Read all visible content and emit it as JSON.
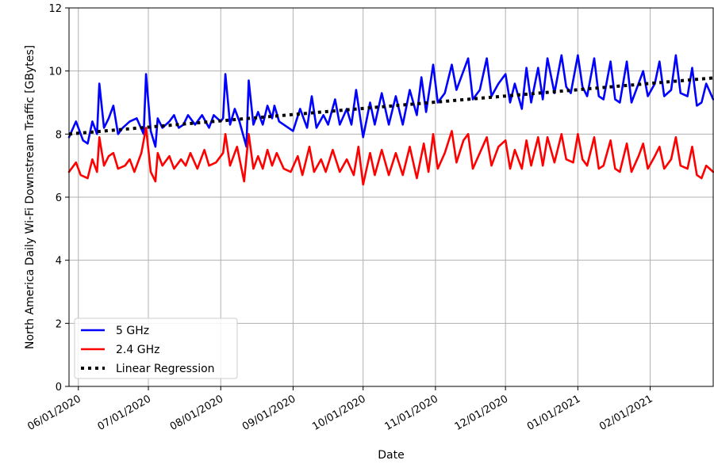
{
  "chart_data": {
    "type": "line",
    "title": "",
    "xlabel": "Date",
    "ylabel": "North America Daily Wi-Fi Downstream Traffic [GBytes]",
    "x_range": [
      "2020-05-28",
      "2021-02-28"
    ],
    "ylim": [
      0,
      12
    ],
    "yticks": [
      0,
      2,
      4,
      6,
      8,
      10,
      12
    ],
    "xticks": [
      {
        "date": "2020-06-01",
        "label": "06/01/2020"
      },
      {
        "date": "2020-07-01",
        "label": "07/01/2020"
      },
      {
        "date": "2020-08-01",
        "label": "08/01/2020"
      },
      {
        "date": "2020-09-01",
        "label": "09/01/2020"
      },
      {
        "date": "2020-10-01",
        "label": "10/01/2020"
      },
      {
        "date": "2020-11-01",
        "label": "11/01/2020"
      },
      {
        "date": "2020-12-01",
        "label": "12/01/2020"
      },
      {
        "date": "2021-01-01",
        "label": "01/01/2021"
      },
      {
        "date": "2021-02-01",
        "label": "02/01/2021"
      }
    ],
    "grid": true,
    "legend_position": "lower-left",
    "series": [
      {
        "name": "5 GHz",
        "color": "#0000ff",
        "style": "solid",
        "points": [
          [
            "2020-05-28",
            7.9
          ],
          [
            "2020-05-31",
            8.4
          ],
          [
            "2020-06-03",
            7.8
          ],
          [
            "2020-06-05",
            7.7
          ],
          [
            "2020-06-07",
            8.4
          ],
          [
            "2020-06-09",
            8.0
          ],
          [
            "2020-06-10",
            9.6
          ],
          [
            "2020-06-12",
            8.2
          ],
          [
            "2020-06-14",
            8.5
          ],
          [
            "2020-06-16",
            8.9
          ],
          [
            "2020-06-18",
            8.0
          ],
          [
            "2020-06-20",
            8.2
          ],
          [
            "2020-06-23",
            8.4
          ],
          [
            "2020-06-26",
            8.5
          ],
          [
            "2020-06-29",
            8.0
          ],
          [
            "2020-06-30",
            9.9
          ],
          [
            "2020-07-02",
            8.1
          ],
          [
            "2020-07-04",
            7.6
          ],
          [
            "2020-07-05",
            8.5
          ],
          [
            "2020-07-07",
            8.2
          ],
          [
            "2020-07-10",
            8.4
          ],
          [
            "2020-07-12",
            8.6
          ],
          [
            "2020-07-14",
            8.2
          ],
          [
            "2020-07-16",
            8.3
          ],
          [
            "2020-07-18",
            8.6
          ],
          [
            "2020-07-21",
            8.3
          ],
          [
            "2020-07-24",
            8.6
          ],
          [
            "2020-07-27",
            8.2
          ],
          [
            "2020-07-29",
            8.6
          ],
          [
            "2020-08-01",
            8.4
          ],
          [
            "2020-08-02",
            8.5
          ],
          [
            "2020-08-03",
            9.9
          ],
          [
            "2020-08-05",
            8.3
          ],
          [
            "2020-08-07",
            8.8
          ],
          [
            "2020-08-09",
            8.4
          ],
          [
            "2020-08-12",
            7.6
          ],
          [
            "2020-08-13",
            9.7
          ],
          [
            "2020-08-15",
            8.3
          ],
          [
            "2020-08-17",
            8.7
          ],
          [
            "2020-08-19",
            8.3
          ],
          [
            "2020-08-21",
            8.9
          ],
          [
            "2020-08-23",
            8.5
          ],
          [
            "2020-08-24",
            8.9
          ],
          [
            "2020-08-26",
            8.4
          ],
          [
            "2020-08-28",
            8.3
          ],
          [
            "2020-09-01",
            8.1
          ],
          [
            "2020-09-04",
            8.8
          ],
          [
            "2020-09-07",
            8.2
          ],
          [
            "2020-09-09",
            9.2
          ],
          [
            "2020-09-11",
            8.2
          ],
          [
            "2020-09-14",
            8.6
          ],
          [
            "2020-09-16",
            8.3
          ],
          [
            "2020-09-19",
            9.1
          ],
          [
            "2020-09-21",
            8.3
          ],
          [
            "2020-09-24",
            8.8
          ],
          [
            "2020-09-26",
            8.3
          ],
          [
            "2020-09-28",
            9.4
          ],
          [
            "2020-10-01",
            7.9
          ],
          [
            "2020-10-04",
            9.0
          ],
          [
            "2020-10-06",
            8.3
          ],
          [
            "2020-10-09",
            9.3
          ],
          [
            "2020-10-12",
            8.3
          ],
          [
            "2020-10-15",
            9.2
          ],
          [
            "2020-10-18",
            8.3
          ],
          [
            "2020-10-21",
            9.4
          ],
          [
            "2020-10-24",
            8.6
          ],
          [
            "2020-10-26",
            9.8
          ],
          [
            "2020-10-28",
            8.7
          ],
          [
            "2020-10-31",
            10.2
          ],
          [
            "2020-11-02",
            9.0
          ],
          [
            "2020-11-05",
            9.3
          ],
          [
            "2020-11-08",
            10.2
          ],
          [
            "2020-11-10",
            9.4
          ],
          [
            "2020-11-13",
            10.0
          ],
          [
            "2020-11-15",
            10.4
          ],
          [
            "2020-11-17",
            9.1
          ],
          [
            "2020-11-20",
            9.4
          ],
          [
            "2020-11-23",
            10.4
          ],
          [
            "2020-11-25",
            9.2
          ],
          [
            "2020-11-28",
            9.6
          ],
          [
            "2020-12-01",
            9.9
          ],
          [
            "2020-12-03",
            9.0
          ],
          [
            "2020-12-05",
            9.6
          ],
          [
            "2020-12-08",
            8.8
          ],
          [
            "2020-12-10",
            10.1
          ],
          [
            "2020-12-12",
            9.0
          ],
          [
            "2020-12-15",
            10.1
          ],
          [
            "2020-12-17",
            9.1
          ],
          [
            "2020-12-19",
            10.4
          ],
          [
            "2020-12-22",
            9.3
          ],
          [
            "2020-12-25",
            10.5
          ],
          [
            "2020-12-27",
            9.5
          ],
          [
            "2020-12-29",
            9.3
          ],
          [
            "2021-01-01",
            10.5
          ],
          [
            "2021-01-03",
            9.5
          ],
          [
            "2021-01-05",
            9.2
          ],
          [
            "2021-01-08",
            10.4
          ],
          [
            "2021-01-10",
            9.2
          ],
          [
            "2021-01-12",
            9.1
          ],
          [
            "2021-01-15",
            10.3
          ],
          [
            "2021-01-17",
            9.1
          ],
          [
            "2021-01-19",
            9.0
          ],
          [
            "2021-01-22",
            10.3
          ],
          [
            "2021-01-24",
            9.0
          ],
          [
            "2021-01-27",
            9.6
          ],
          [
            "2021-01-29",
            10.0
          ],
          [
            "2021-01-31",
            9.2
          ],
          [
            "2021-02-03",
            9.6
          ],
          [
            "2021-02-05",
            10.3
          ],
          [
            "2021-02-07",
            9.2
          ],
          [
            "2021-02-10",
            9.4
          ],
          [
            "2021-02-12",
            10.5
          ],
          [
            "2021-02-14",
            9.3
          ],
          [
            "2021-02-17",
            9.2
          ],
          [
            "2021-02-19",
            10.1
          ],
          [
            "2021-02-21",
            8.9
          ],
          [
            "2021-02-23",
            9.0
          ],
          [
            "2021-02-25",
            9.6
          ],
          [
            "2021-02-28",
            9.1
          ]
        ]
      },
      {
        "name": "2.4 GHz",
        "color": "#ff0000",
        "style": "solid",
        "points": [
          [
            "2020-05-28",
            6.8
          ],
          [
            "2020-05-31",
            7.1
          ],
          [
            "2020-06-02",
            6.7
          ],
          [
            "2020-06-05",
            6.6
          ],
          [
            "2020-06-07",
            7.2
          ],
          [
            "2020-06-09",
            6.8
          ],
          [
            "2020-06-10",
            7.9
          ],
          [
            "2020-06-12",
            7.0
          ],
          [
            "2020-06-14",
            7.3
          ],
          [
            "2020-06-16",
            7.4
          ],
          [
            "2020-06-18",
            6.9
          ],
          [
            "2020-06-21",
            7.0
          ],
          [
            "2020-06-23",
            7.2
          ],
          [
            "2020-06-25",
            6.8
          ],
          [
            "2020-06-28",
            7.4
          ],
          [
            "2020-06-30",
            8.2
          ],
          [
            "2020-07-02",
            6.8
          ],
          [
            "2020-07-04",
            6.5
          ],
          [
            "2020-07-05",
            7.4
          ],
          [
            "2020-07-07",
            7.0
          ],
          [
            "2020-07-10",
            7.3
          ],
          [
            "2020-07-12",
            6.9
          ],
          [
            "2020-07-15",
            7.2
          ],
          [
            "2020-07-17",
            7.0
          ],
          [
            "2020-07-19",
            7.4
          ],
          [
            "2020-07-22",
            6.9
          ],
          [
            "2020-07-25",
            7.5
          ],
          [
            "2020-07-27",
            7.0
          ],
          [
            "2020-07-30",
            7.1
          ],
          [
            "2020-08-02",
            7.4
          ],
          [
            "2020-08-03",
            8.0
          ],
          [
            "2020-08-05",
            7.0
          ],
          [
            "2020-08-08",
            7.6
          ],
          [
            "2020-08-11",
            6.5
          ],
          [
            "2020-08-13",
            8.0
          ],
          [
            "2020-08-15",
            6.9
          ],
          [
            "2020-08-17",
            7.3
          ],
          [
            "2020-08-19",
            6.9
          ],
          [
            "2020-08-21",
            7.5
          ],
          [
            "2020-08-23",
            7.0
          ],
          [
            "2020-08-25",
            7.4
          ],
          [
            "2020-08-28",
            6.9
          ],
          [
            "2020-08-31",
            6.8
          ],
          [
            "2020-09-03",
            7.3
          ],
          [
            "2020-09-05",
            6.7
          ],
          [
            "2020-09-08",
            7.6
          ],
          [
            "2020-09-10",
            6.8
          ],
          [
            "2020-09-13",
            7.2
          ],
          [
            "2020-09-15",
            6.8
          ],
          [
            "2020-09-18",
            7.5
          ],
          [
            "2020-09-21",
            6.8
          ],
          [
            "2020-09-24",
            7.2
          ],
          [
            "2020-09-27",
            6.7
          ],
          [
            "2020-09-29",
            7.6
          ],
          [
            "2020-10-01",
            6.4
          ],
          [
            "2020-10-04",
            7.4
          ],
          [
            "2020-10-06",
            6.7
          ],
          [
            "2020-10-09",
            7.5
          ],
          [
            "2020-10-12",
            6.7
          ],
          [
            "2020-10-15",
            7.4
          ],
          [
            "2020-10-18",
            6.7
          ],
          [
            "2020-10-21",
            7.6
          ],
          [
            "2020-10-24",
            6.6
          ],
          [
            "2020-10-27",
            7.7
          ],
          [
            "2020-10-29",
            6.8
          ],
          [
            "2020-10-31",
            8.0
          ],
          [
            "2020-11-02",
            6.9
          ],
          [
            "2020-11-05",
            7.4
          ],
          [
            "2020-11-08",
            8.1
          ],
          [
            "2020-11-10",
            7.1
          ],
          [
            "2020-11-13",
            7.8
          ],
          [
            "2020-11-15",
            8.0
          ],
          [
            "2020-11-17",
            6.9
          ],
          [
            "2020-11-20",
            7.4
          ],
          [
            "2020-11-23",
            7.9
          ],
          [
            "2020-11-25",
            7.0
          ],
          [
            "2020-11-28",
            7.6
          ],
          [
            "2020-12-01",
            7.8
          ],
          [
            "2020-12-03",
            6.9
          ],
          [
            "2020-12-05",
            7.5
          ],
          [
            "2020-12-08",
            6.9
          ],
          [
            "2020-12-10",
            7.8
          ],
          [
            "2020-12-12",
            7.0
          ],
          [
            "2020-12-15",
            7.9
          ],
          [
            "2020-12-17",
            7.0
          ],
          [
            "2020-12-19",
            7.9
          ],
          [
            "2020-12-22",
            7.1
          ],
          [
            "2020-12-25",
            8.0
          ],
          [
            "2020-12-27",
            7.2
          ],
          [
            "2020-12-30",
            7.1
          ],
          [
            "2021-01-01",
            8.0
          ],
          [
            "2021-01-03",
            7.2
          ],
          [
            "2021-01-05",
            7.0
          ],
          [
            "2021-01-08",
            7.9
          ],
          [
            "2021-01-10",
            6.9
          ],
          [
            "2021-01-12",
            7.0
          ],
          [
            "2021-01-15",
            7.8
          ],
          [
            "2021-01-17",
            6.9
          ],
          [
            "2021-01-19",
            6.8
          ],
          [
            "2021-01-22",
            7.7
          ],
          [
            "2021-01-24",
            6.8
          ],
          [
            "2021-01-27",
            7.3
          ],
          [
            "2021-01-29",
            7.7
          ],
          [
            "2021-01-31",
            6.9
          ],
          [
            "2021-02-03",
            7.3
          ],
          [
            "2021-02-05",
            7.6
          ],
          [
            "2021-02-07",
            6.9
          ],
          [
            "2021-02-10",
            7.2
          ],
          [
            "2021-02-12",
            7.9
          ],
          [
            "2021-02-14",
            7.0
          ],
          [
            "2021-02-17",
            6.9
          ],
          [
            "2021-02-19",
            7.6
          ],
          [
            "2021-02-21",
            6.7
          ],
          [
            "2021-02-23",
            6.6
          ],
          [
            "2021-02-25",
            7.0
          ],
          [
            "2021-02-28",
            6.8
          ]
        ]
      },
      {
        "name": "Linear Regression",
        "color": "#000000",
        "style": "dotted",
        "points": [
          [
            "2020-05-28",
            8.0
          ],
          [
            "2021-02-28",
            9.78
          ]
        ]
      }
    ]
  }
}
